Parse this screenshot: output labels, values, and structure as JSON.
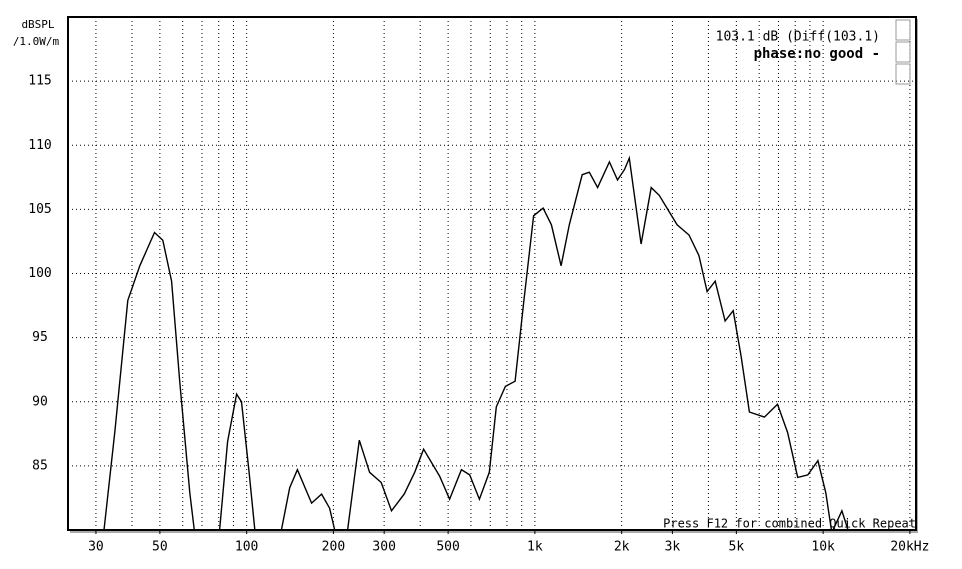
{
  "chart_data": {
    "type": "line",
    "y_label_lines": [
      "dBSPL",
      "/1.0W/m"
    ],
    "annotations": [
      "103.1 dB (Diff(103.1)",
      "phase:no good -",
      "Press F12 for combined Quick Repeat"
    ],
    "x": [
      24,
      32,
      34.9,
      38.7,
      42.6,
      47.9,
      51.2,
      54.9,
      58.6,
      63.5,
      66,
      80.6,
      85.9,
      92.3,
      96,
      102,
      107,
      132,
      141,
      150,
      168,
      182,
      194,
      202,
      224,
      246,
      267,
      293,
      318,
      352,
      383,
      411,
      467,
      506,
      556,
      594,
      642,
      695,
      735,
      790,
      854,
      916,
      990,
      1068,
      1141,
      1233,
      1316,
      1459,
      1545,
      1650,
      1814,
      1934,
      2046,
      2126,
      2336,
      2533,
      2700,
      3115,
      3426,
      3706,
      3958,
      4224,
      4570,
      4876,
      5199,
      5549,
      6255,
      6943,
      7530,
      8160,
      8846,
      9588,
      10220,
      10720,
      11620,
      12200
    ],
    "series": [
      {
        "color": "#000000",
        "values": [
          80,
          80,
          87.7,
          97.9,
          100.6,
          103.2,
          102.6,
          99.4,
          91.6,
          82.9,
          79.8,
          80,
          86.9,
          90.6,
          90.0,
          84.5,
          79.8,
          80,
          83.3,
          84.7,
          82.1,
          82.8,
          81.7,
          80,
          80,
          87.0,
          84.5,
          83.7,
          81.5,
          82.8,
          84.5,
          86.3,
          84.2,
          82.4,
          84.7,
          84.3,
          82.4,
          84.5,
          89.6,
          91.2,
          91.6,
          97.9,
          104.5,
          105.1,
          103.8,
          100.6,
          103.8,
          107.7,
          107.9,
          106.7,
          108.7,
          107.3,
          108.1,
          109.0,
          102.3,
          106.7,
          106.1,
          103.8,
          103.0,
          101.4,
          98.6,
          99.4,
          96.3,
          97.1,
          93.5,
          89.2,
          88.8,
          89.8,
          87.6,
          84.1,
          84.3,
          85.4,
          82.9,
          79.8,
          81.5,
          80
        ]
      }
    ],
    "xlog": true,
    "xlim": [
      24,
      21000
    ],
    "ylim": [
      80,
      120
    ],
    "xticks": [
      30,
      50,
      100,
      200,
      300,
      500,
      {
        "value": 1000,
        "label": "1k"
      },
      {
        "value": 2000,
        "label": "2k"
      },
      {
        "value": 3000,
        "label": "3k"
      },
      {
        "value": 5000,
        "label": "5k"
      },
      {
        "value": 10000,
        "label": "10k"
      },
      {
        "value": 20000,
        "label": "20kHz"
      }
    ],
    "xgrid": [
      30,
      40,
      50,
      60,
      70,
      80,
      90,
      100,
      200,
      300,
      400,
      500,
      600,
      700,
      800,
      900,
      1000,
      2000,
      3000,
      4000,
      5000,
      6000,
      7000,
      8000,
      9000,
      10000,
      20000
    ],
    "yticks": [
      85,
      90,
      95,
      100,
      105,
      110,
      115
    ],
    "grid": true
  }
}
